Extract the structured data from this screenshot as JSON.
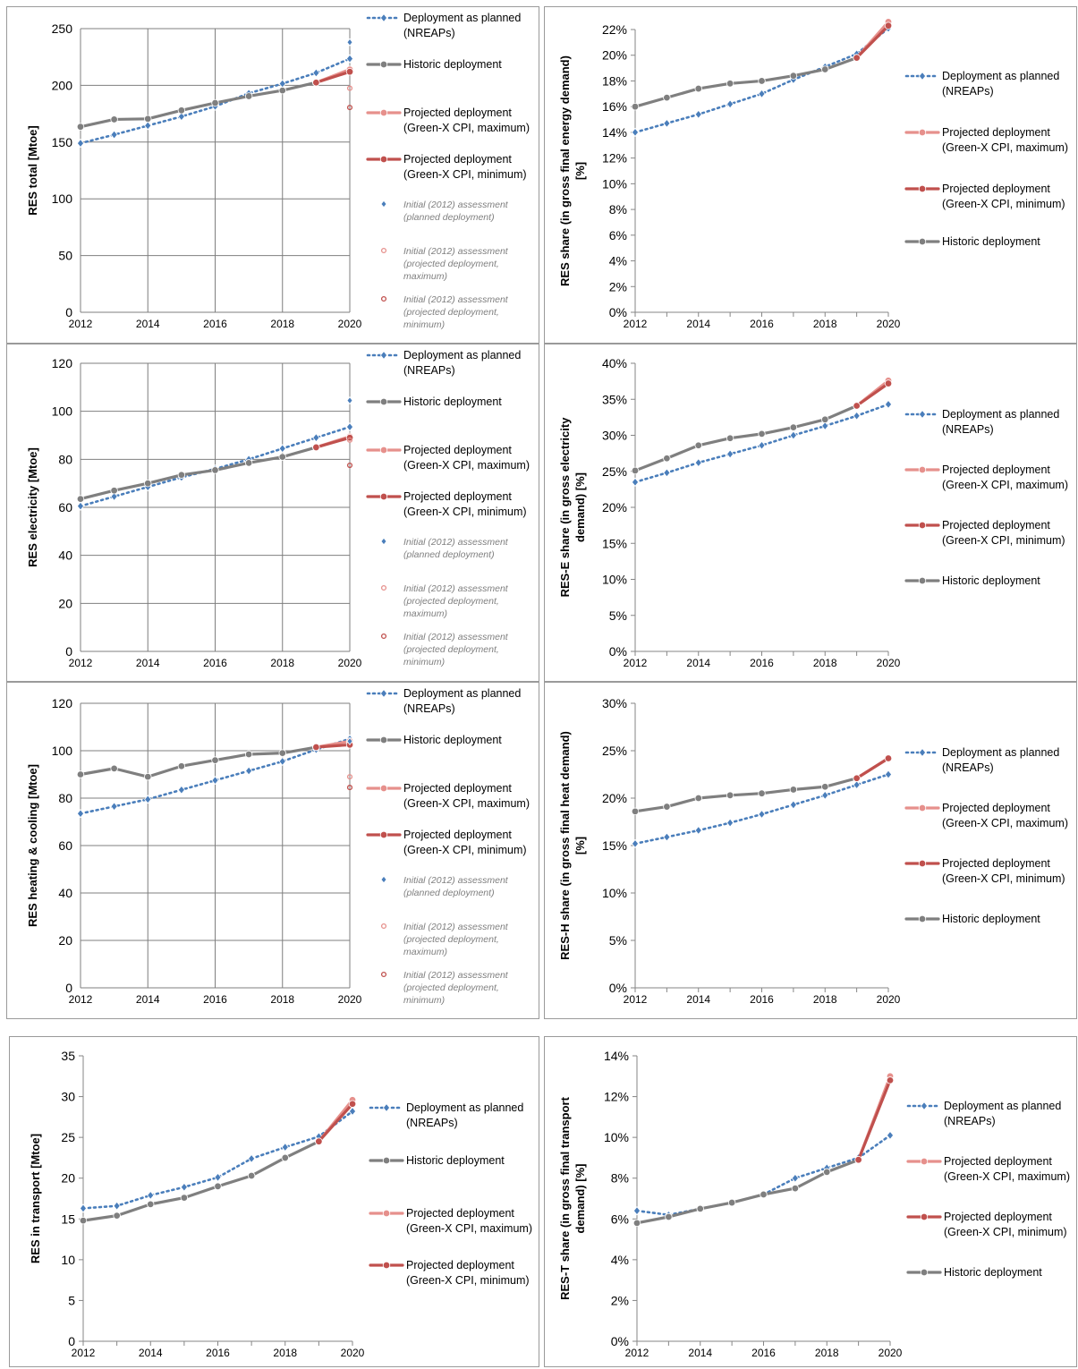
{
  "colors": {
    "planned": "#4a7ebb",
    "historic": "#7f7f7f",
    "proj_max": "#e6908c",
    "proj_min": "#c0504d",
    "initial_text": "#7f7f7f",
    "grid": "#7f7f7f"
  },
  "legend_labels": {
    "planned": [
      "Deployment as planned",
      "(NREAPs)"
    ],
    "historic": [
      "Historic deployment"
    ],
    "proj_max": [
      "Projected deployment",
      "(Green-X CPI, maximum)"
    ],
    "proj_min": [
      "Projected deployment",
      "(Green-X CPI, minimum)"
    ],
    "init_planned": [
      "Initial (2012) assessment",
      "(planned deployment)"
    ],
    "init_max": [
      "Initial (2012) assessment",
      "(projected deployment,",
      "maximum)"
    ],
    "init_min": [
      "Initial (2012) assessment",
      "(projected deployment,",
      "minimum)"
    ]
  },
  "chart_data": [
    {
      "id": "res-total",
      "type": "line",
      "ylabel": "RES total [Mtoe]",
      "ylim": [
        0,
        250
      ],
      "ytick_step": 50,
      "ytick_format": "num",
      "xlim": [
        2012,
        2020
      ],
      "x_ticks": [
        2012,
        2014,
        2016,
        2018,
        2020
      ],
      "grid": true,
      "legend": [
        "planned",
        "historic",
        "proj_max",
        "proj_min",
        "init_planned",
        "init_max",
        "init_min"
      ],
      "series": [
        {
          "key": "planned",
          "name": "Deployment as planned (NREAPs)",
          "x": [
            2012,
            2013,
            2014,
            2015,
            2016,
            2017,
            2018,
            2019,
            2020
          ],
          "y": [
            149,
            156.5,
            164.5,
            172.5,
            181.5,
            193,
            201.5,
            211,
            223.5
          ]
        },
        {
          "key": "historic",
          "name": "Historic deployment",
          "x": [
            2012,
            2013,
            2014,
            2015,
            2016,
            2017,
            2018,
            2019
          ],
          "y": [
            163.5,
            170,
            170.5,
            178,
            184.5,
            190.5,
            195.5,
            202.5
          ]
        },
        {
          "key": "proj_max",
          "name": "Projected deployment (Green-X CPI, maximum)",
          "x": [
            2019,
            2020
          ],
          "y": [
            202.5,
            214
          ]
        },
        {
          "key": "proj_min",
          "name": "Projected deployment (Green-X CPI, minimum)",
          "x": [
            2019,
            2020
          ],
          "y": [
            202.5,
            212
          ]
        },
        {
          "key": "init_planned",
          "name": "Initial (2012) assessment (planned deployment)",
          "x": [
            2020
          ],
          "y": [
            238
          ]
        },
        {
          "key": "init_max",
          "name": "Initial (2012) assessment (projected deployment, maximum)",
          "x": [
            2020
          ],
          "y": [
            197.5
          ]
        },
        {
          "key": "init_min",
          "name": "Initial (2012) assessment (projected deployment, minimum)",
          "x": [
            2020
          ],
          "y": [
            180.5
          ]
        }
      ]
    },
    {
      "id": "res-share",
      "type": "line",
      "ylabel": "RES share (in gross final energy demand) [%]",
      "ylim": [
        0,
        22
      ],
      "ytick_step": 2,
      "ytick_format": "pct",
      "xlim": [
        2012,
        2020
      ],
      "x_ticks": [
        2012,
        2014,
        2016,
        2018,
        2020
      ],
      "grid": false,
      "legend": [
        "planned",
        "proj_max",
        "proj_min",
        "historic"
      ],
      "series": [
        {
          "key": "planned",
          "name": "Deployment as planned (NREAPs)",
          "x": [
            2012,
            2013,
            2014,
            2015,
            2016,
            2017,
            2018,
            2019,
            2020
          ],
          "y": [
            14,
            14.7,
            15.4,
            16.2,
            17,
            18.1,
            19.1,
            20.1,
            22.1
          ]
        },
        {
          "key": "historic",
          "name": "Historic deployment",
          "x": [
            2012,
            2013,
            2014,
            2015,
            2016,
            2017,
            2018,
            2019
          ],
          "y": [
            16,
            16.7,
            17.4,
            17.8,
            18,
            18.4,
            18.9,
            19.8
          ]
        },
        {
          "key": "proj_max",
          "name": "Projected deployment (Green-X CPI, maximum)",
          "x": [
            2019,
            2020
          ],
          "y": [
            19.8,
            22.6
          ]
        },
        {
          "key": "proj_min",
          "name": "Projected deployment (Green-X CPI, minimum)",
          "x": [
            2019,
            2020
          ],
          "y": [
            19.8,
            22.3
          ]
        }
      ]
    },
    {
      "id": "res-electricity",
      "type": "line",
      "ylabel": "RES electricity [Mtoe]",
      "ylim": [
        0,
        120
      ],
      "ytick_step": 20,
      "ytick_format": "num",
      "xlim": [
        2012,
        2020
      ],
      "x_ticks": [
        2012,
        2014,
        2016,
        2018,
        2020
      ],
      "grid": true,
      "legend": [
        "planned",
        "historic",
        "proj_max",
        "proj_min",
        "init_planned",
        "init_max",
        "init_min"
      ],
      "series": [
        {
          "key": "planned",
          "name": "Deployment as planned (NREAPs)",
          "x": [
            2012,
            2013,
            2014,
            2015,
            2016,
            2017,
            2018,
            2019,
            2020
          ],
          "y": [
            60.5,
            64.5,
            68.5,
            72.5,
            76,
            80,
            84.5,
            89,
            93.5
          ]
        },
        {
          "key": "historic",
          "name": "Historic deployment",
          "x": [
            2012,
            2013,
            2014,
            2015,
            2016,
            2017,
            2018,
            2019
          ],
          "y": [
            63.5,
            67,
            70,
            73.5,
            75.5,
            78.5,
            81,
            85
          ]
        },
        {
          "key": "proj_max",
          "name": "Projected deployment (Green-X CPI, maximum)",
          "x": [
            2019,
            2020
          ],
          "y": [
            85,
            89.5
          ]
        },
        {
          "key": "proj_min",
          "name": "Projected deployment (Green-X CPI, minimum)",
          "x": [
            2019,
            2020
          ],
          "y": [
            85,
            89
          ]
        },
        {
          "key": "init_planned",
          "name": "Initial (2012) assessment (planned deployment)",
          "x": [
            2020
          ],
          "y": [
            104.5
          ]
        },
        {
          "key": "init_max",
          "name": "Initial (2012) assessment (projected deployment, maximum)",
          "x": [
            2020
          ],
          "y": [
            88
          ]
        },
        {
          "key": "init_min",
          "name": "Initial (2012) assessment (projected deployment, minimum)",
          "x": [
            2020
          ],
          "y": [
            77.5
          ]
        }
      ]
    },
    {
      "id": "res-e-share",
      "type": "line",
      "ylabel": "RES-E share (in gross electricity demand) [%]",
      "ylim": [
        0,
        40
      ],
      "ytick_step": 5,
      "ytick_format": "pct",
      "xlim": [
        2012,
        2020
      ],
      "x_ticks": [
        2012,
        2014,
        2016,
        2018,
        2020
      ],
      "grid": false,
      "legend": [
        "planned",
        "proj_max",
        "proj_min",
        "historic"
      ],
      "series": [
        {
          "key": "planned",
          "name": "Deployment as planned (NREAPs)",
          "x": [
            2012,
            2013,
            2014,
            2015,
            2016,
            2017,
            2018,
            2019,
            2020
          ],
          "y": [
            23.5,
            24.8,
            26.2,
            27.4,
            28.6,
            30,
            31.3,
            32.7,
            34.3
          ]
        },
        {
          "key": "historic",
          "name": "Historic deployment",
          "x": [
            2012,
            2013,
            2014,
            2015,
            2016,
            2017,
            2018,
            2019
          ],
          "y": [
            25.1,
            26.8,
            28.6,
            29.6,
            30.2,
            31.1,
            32.2,
            34.1
          ]
        },
        {
          "key": "proj_max",
          "name": "Projected deployment (Green-X CPI, maximum)",
          "x": [
            2019,
            2020
          ],
          "y": [
            34.1,
            37.6
          ]
        },
        {
          "key": "proj_min",
          "name": "Projected deployment (Green-X CPI, minimum)",
          "x": [
            2019,
            2020
          ],
          "y": [
            34.1,
            37.2
          ]
        }
      ]
    },
    {
      "id": "res-heating",
      "type": "line",
      "ylabel": "RES heating & cooling [Mtoe]",
      "ylim": [
        0,
        120
      ],
      "ytick_step": 20,
      "ytick_format": "num",
      "xlim": [
        2012,
        2020
      ],
      "x_ticks": [
        2012,
        2014,
        2016,
        2018,
        2020
      ],
      "grid": true,
      "legend": [
        "planned",
        "historic",
        "proj_max",
        "proj_min",
        "init_planned",
        "init_max",
        "init_min"
      ],
      "series": [
        {
          "key": "planned",
          "name": "Deployment as planned (NREAPs)",
          "x": [
            2012,
            2013,
            2014,
            2015,
            2016,
            2017,
            2018,
            2019,
            2020
          ],
          "y": [
            73.5,
            76.5,
            79.5,
            83.5,
            87.5,
            91.5,
            95.5,
            100.5,
            105
          ]
        },
        {
          "key": "historic",
          "name": "Historic deployment",
          "x": [
            2012,
            2013,
            2014,
            2015,
            2016,
            2017,
            2018,
            2019
          ],
          "y": [
            90,
            92.5,
            89,
            93.5,
            96,
            98.5,
            99,
            101.5
          ]
        },
        {
          "key": "proj_max",
          "name": "Projected deployment (Green-X CPI, maximum)",
          "x": [
            2019,
            2020
          ],
          "y": [
            101.5,
            104
          ]
        },
        {
          "key": "proj_min",
          "name": "Projected deployment (Green-X CPI, minimum)",
          "x": [
            2019,
            2020
          ],
          "y": [
            101.5,
            102.5
          ]
        },
        {
          "key": "init_planned",
          "name": "Initial (2012) assessment (planned deployment)",
          "x": [
            2020
          ],
          "y": [
            104
          ]
        },
        {
          "key": "init_max",
          "name": "Initial (2012) assessment (projected deployment, maximum)",
          "x": [
            2020
          ],
          "y": [
            89
          ]
        },
        {
          "key": "init_min",
          "name": "Initial (2012) assessment (projected deployment, minimum)",
          "x": [
            2020
          ],
          "y": [
            84.5
          ]
        }
      ]
    },
    {
      "id": "res-h-share",
      "type": "line",
      "ylabel": "RES-H share (in gross final heat demand) [%]",
      "ylim": [
        0,
        30
      ],
      "ytick_step": 5,
      "ytick_format": "pct",
      "xlim": [
        2012,
        2020
      ],
      "x_ticks": [
        2012,
        2014,
        2016,
        2018,
        2020
      ],
      "grid": false,
      "legend": [
        "planned",
        "proj_max",
        "proj_min",
        "historic"
      ],
      "series": [
        {
          "key": "planned",
          "name": "Deployment as planned (NREAPs)",
          "x": [
            2012,
            2013,
            2014,
            2015,
            2016,
            2017,
            2018,
            2019,
            2020
          ],
          "y": [
            15.2,
            15.9,
            16.6,
            17.4,
            18.3,
            19.3,
            20.3,
            21.4,
            22.5
          ]
        },
        {
          "key": "historic",
          "name": "Historic deployment",
          "x": [
            2012,
            2013,
            2014,
            2015,
            2016,
            2017,
            2018,
            2019
          ],
          "y": [
            18.6,
            19.1,
            20,
            20.3,
            20.5,
            20.9,
            21.2,
            22.1
          ]
        },
        {
          "key": "proj_max",
          "name": "Projected deployment (Green-X CPI, maximum)",
          "x": [
            2019,
            2020
          ],
          "y": [
            22.1,
            24.2
          ]
        },
        {
          "key": "proj_min",
          "name": "Projected deployment (Green-X CPI, minimum)",
          "x": [
            2019,
            2020
          ],
          "y": [
            22.1,
            24.2
          ]
        }
      ]
    },
    {
      "id": "res-transport",
      "type": "line",
      "ylabel": "RES in transport [Mtoe]",
      "ylim": [
        0,
        35
      ],
      "ytick_step": 5,
      "ytick_format": "num",
      "xlim": [
        2012,
        2020
      ],
      "x_ticks": [
        2012,
        2014,
        2016,
        2018,
        2020
      ],
      "grid": false,
      "legend": [
        "planned",
        "historic",
        "proj_max",
        "proj_min"
      ],
      "series": [
        {
          "key": "planned",
          "name": "Deployment as planned (NREAPs)",
          "x": [
            2012,
            2013,
            2014,
            2015,
            2016,
            2017,
            2018,
            2019,
            2020
          ],
          "y": [
            16.3,
            16.6,
            17.9,
            18.9,
            20.1,
            22.4,
            23.8,
            25.1,
            28.2
          ]
        },
        {
          "key": "historic",
          "name": "Historic deployment",
          "x": [
            2012,
            2013,
            2014,
            2015,
            2016,
            2017,
            2018,
            2019
          ],
          "y": [
            14.8,
            15.4,
            16.8,
            17.6,
            19,
            20.3,
            22.5,
            24.5
          ]
        },
        {
          "key": "proj_max",
          "name": "Projected deployment (Green-X CPI, maximum)",
          "x": [
            2019,
            2020
          ],
          "y": [
            24.5,
            29.6
          ]
        },
        {
          "key": "proj_min",
          "name": "Projected deployment (Green-X CPI, minimum)",
          "x": [
            2019,
            2020
          ],
          "y": [
            24.5,
            29.1
          ]
        }
      ]
    },
    {
      "id": "res-t-share",
      "type": "line",
      "ylabel": "RES-T share (in gross final transport demand) [%]",
      "ylim": [
        0,
        14
      ],
      "ytick_step": 2,
      "ytick_format": "pct",
      "xlim": [
        2012,
        2020
      ],
      "x_ticks": [
        2012,
        2014,
        2016,
        2018,
        2020
      ],
      "grid": false,
      "legend": [
        "planned",
        "proj_max",
        "proj_min",
        "historic"
      ],
      "series": [
        {
          "key": "planned",
          "name": "Deployment as planned (NREAPs)",
          "x": [
            2012,
            2013,
            2014,
            2015,
            2016,
            2017,
            2018,
            2019,
            2020
          ],
          "y": [
            6.4,
            6.2,
            6.5,
            6.8,
            7.2,
            8,
            8.5,
            9,
            10.1
          ]
        },
        {
          "key": "historic",
          "name": "Historic deployment",
          "x": [
            2012,
            2013,
            2014,
            2015,
            2016,
            2017,
            2018,
            2019
          ],
          "y": [
            5.8,
            6.1,
            6.5,
            6.8,
            7.2,
            7.5,
            8.3,
            8.9
          ]
        },
        {
          "key": "proj_max",
          "name": "Projected deployment (Green-X CPI, maximum)",
          "x": [
            2019,
            2020
          ],
          "y": [
            8.9,
            13
          ]
        },
        {
          "key": "proj_min",
          "name": "Projected deployment (Green-X CPI, minimum)",
          "x": [
            2019,
            2020
          ],
          "y": [
            8.9,
            12.8
          ]
        }
      ]
    }
  ]
}
